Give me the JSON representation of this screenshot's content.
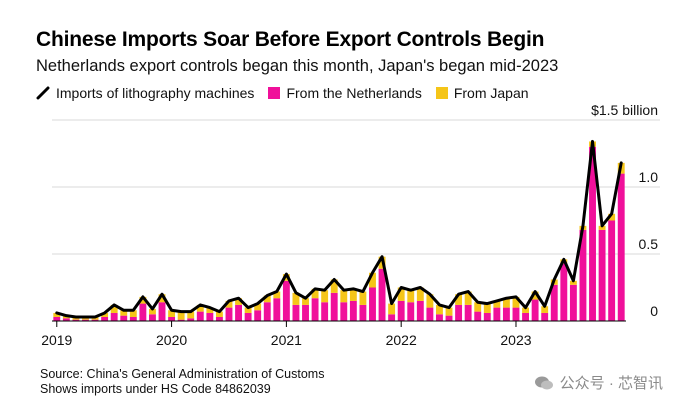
{
  "header": {
    "title": "Chinese Imports Soar Before Export Controls Begin",
    "subtitle": "Netherlands export controls began this month, Japan's began mid-2023"
  },
  "legend": {
    "line_label": "Imports of lithography machines",
    "nl_label": "From the Netherlands",
    "jp_label": "From Japan"
  },
  "colors": {
    "netherlands": "#f0109a",
    "japan": "#f5c518",
    "line": "#000000",
    "grid": "#d9d9d9"
  },
  "footer": {
    "source_line1": "Source: China's General Administration of Customs",
    "source_line2": "Shows imports under HS Code 84862039",
    "watermark": "公众号 · 芯智讯"
  },
  "chart_data": {
    "type": "bar",
    "title": "Chinese Imports Soar Before Export Controls Begin",
    "subtitle": "Netherlands export controls began this month, Japan's began mid-2023",
    "stacked": true,
    "x_start": "2019-01",
    "frequency": "monthly",
    "ylim": [
      0,
      1.5
    ],
    "ytick_values": [
      0,
      0.5,
      1.0,
      1.5
    ],
    "ytick_labels": [
      "0",
      "0.5",
      "1.0",
      "$1.5 billion"
    ],
    "xtick_labels": [
      "2019",
      "2020",
      "2021",
      "2022",
      "2023"
    ],
    "grid": true,
    "legend_position": "top-left",
    "series": [
      {
        "name": "From the Netherlands",
        "kind": "bar",
        "values": [
          0.03,
          0.02,
          0.01,
          0.01,
          0.01,
          0.03,
          0.06,
          0.04,
          0.03,
          0.13,
          0.05,
          0.14,
          0.03,
          0.01,
          0.02,
          0.07,
          0.06,
          0.03,
          0.1,
          0.12,
          0.06,
          0.08,
          0.14,
          0.17,
          0.3,
          0.12,
          0.12,
          0.17,
          0.14,
          0.21,
          0.14,
          0.15,
          0.12,
          0.25,
          0.39,
          0.05,
          0.15,
          0.14,
          0.15,
          0.1,
          0.05,
          0.04,
          0.12,
          0.12,
          0.07,
          0.06,
          0.1,
          0.1,
          0.1,
          0.06,
          0.16,
          0.06,
          0.27,
          0.43,
          0.27,
          0.68,
          1.3,
          0.68,
          0.75,
          1.1
        ]
      },
      {
        "name": "From Japan",
        "kind": "bar",
        "values": [
          0.03,
          0.02,
          0.02,
          0.02,
          0.02,
          0.03,
          0.06,
          0.04,
          0.05,
          0.05,
          0.04,
          0.06,
          0.05,
          0.06,
          0.05,
          0.05,
          0.04,
          0.04,
          0.05,
          0.05,
          0.04,
          0.05,
          0.05,
          0.05,
          0.05,
          0.09,
          0.05,
          0.07,
          0.09,
          0.1,
          0.09,
          0.09,
          0.1,
          0.11,
          0.09,
          0.08,
          0.1,
          0.09,
          0.1,
          0.1,
          0.07,
          0.06,
          0.08,
          0.1,
          0.07,
          0.07,
          0.05,
          0.07,
          0.08,
          0.04,
          0.06,
          0.05,
          0.04,
          0.03,
          0.03,
          0.03,
          0.04,
          0.03,
          0.05,
          0.08
        ]
      },
      {
        "name": "Imports of lithography machines",
        "kind": "line",
        "values": [
          0.06,
          0.04,
          0.03,
          0.03,
          0.03,
          0.06,
          0.12,
          0.08,
          0.08,
          0.18,
          0.09,
          0.2,
          0.08,
          0.07,
          0.07,
          0.12,
          0.1,
          0.07,
          0.15,
          0.17,
          0.1,
          0.13,
          0.19,
          0.22,
          0.35,
          0.21,
          0.17,
          0.24,
          0.23,
          0.31,
          0.23,
          0.24,
          0.22,
          0.36,
          0.48,
          0.13,
          0.25,
          0.23,
          0.25,
          0.2,
          0.12,
          0.1,
          0.2,
          0.22,
          0.14,
          0.13,
          0.15,
          0.17,
          0.18,
          0.1,
          0.22,
          0.11,
          0.31,
          0.46,
          0.3,
          0.71,
          1.34,
          0.71,
          0.8,
          1.18
        ]
      }
    ]
  }
}
